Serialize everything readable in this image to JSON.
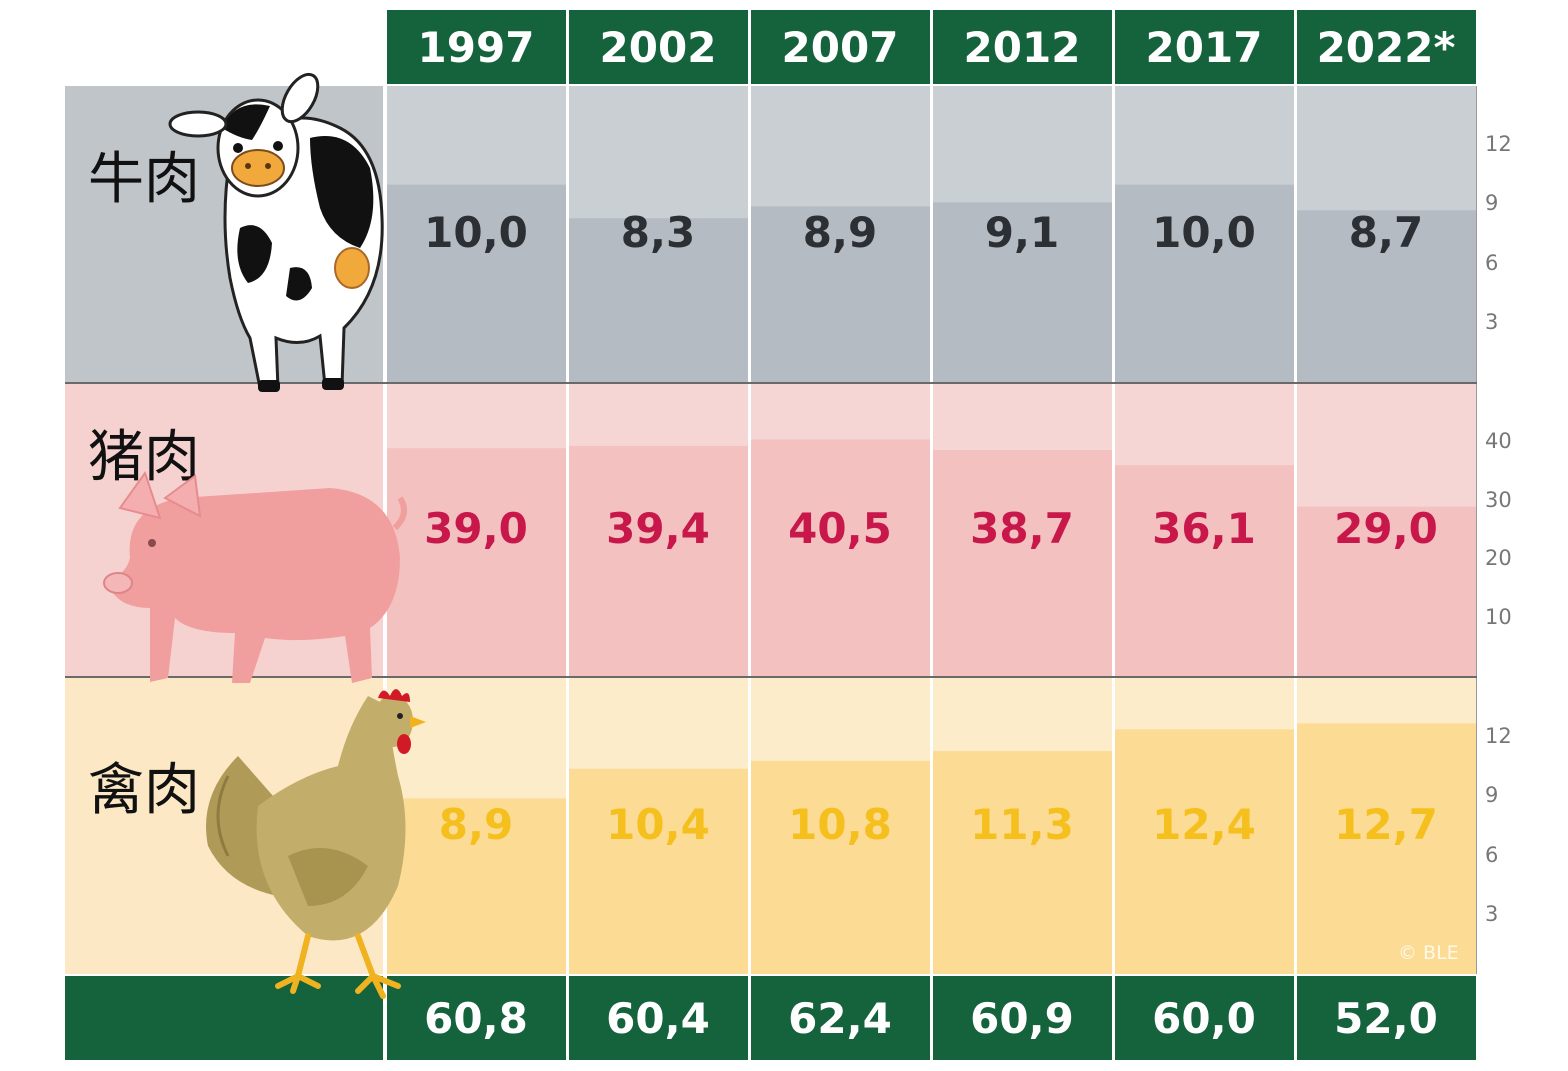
{
  "columns": [
    "1997",
    "2002",
    "2007",
    "2012",
    "2017",
    "2022*"
  ],
  "rows": [
    {
      "label": "牛肉",
      "animal": "cow-icon",
      "value_color": "#2c2f33",
      "band_light": "#c9cfd2",
      "band_dark": "#b4bbc2",
      "left_color": "#bfc5c9",
      "values": [
        "10,0",
        "8,3",
        "8,9",
        "9,1",
        "10,0",
        "8,7"
      ],
      "ticks": [
        "3",
        "6",
        "9",
        "12"
      ]
    },
    {
      "label": "猪肉",
      "animal": "pig-icon",
      "value_color": "#c8174a",
      "band_light": "#f6d6d4",
      "band_dark": "#f2c1c0",
      "left_color": "#f5d2d0",
      "values": [
        "39,0",
        "39,4",
        "40,5",
        "38,7",
        "36,1",
        "29,0"
      ],
      "ticks": [
        "10",
        "20",
        "30",
        "40"
      ]
    },
    {
      "label": "禽肉",
      "animal": "chicken-icon",
      "value_color": "#f5bf1e",
      "band_light": "#fdecc9",
      "band_dark": "#fcdc95",
      "left_color": "#fde8c5",
      "values": [
        "8,9",
        "10,4",
        "10,8",
        "11,3",
        "12,4",
        "12,7"
      ],
      "ticks": [
        "3",
        "6",
        "9",
        "12"
      ]
    }
  ],
  "totals": [
    "60,8",
    "60,4",
    "62,4",
    "60,9",
    "60,0",
    "52,0"
  ],
  "credit": "© BLE",
  "chart_data": {
    "type": "bar",
    "categories": [
      "1997",
      "2002",
      "2007",
      "2012",
      "2017",
      "2022*"
    ],
    "series": [
      {
        "name": "牛肉",
        "values": [
          10.0,
          8.3,
          8.9,
          9.1,
          10.0,
          8.7
        ],
        "ylim": [
          0,
          15
        ],
        "yticks": [
          3,
          6,
          9,
          12
        ]
      },
      {
        "name": "猪肉",
        "values": [
          39.0,
          39.4,
          40.5,
          38.7,
          36.1,
          29.0
        ],
        "ylim": [
          0,
          50
        ],
        "yticks": [
          10,
          20,
          30,
          40
        ]
      },
      {
        "name": "禽肉",
        "values": [
          8.9,
          10.4,
          10.8,
          11.3,
          12.4,
          12.7
        ],
        "ylim": [
          0,
          15
        ],
        "yticks": [
          3,
          6,
          9,
          12
        ]
      }
    ],
    "totals": [
      60.8,
      60.4,
      62.4,
      60.9,
      60.0,
      52.0
    ],
    "legend": "none",
    "grid": false
  }
}
